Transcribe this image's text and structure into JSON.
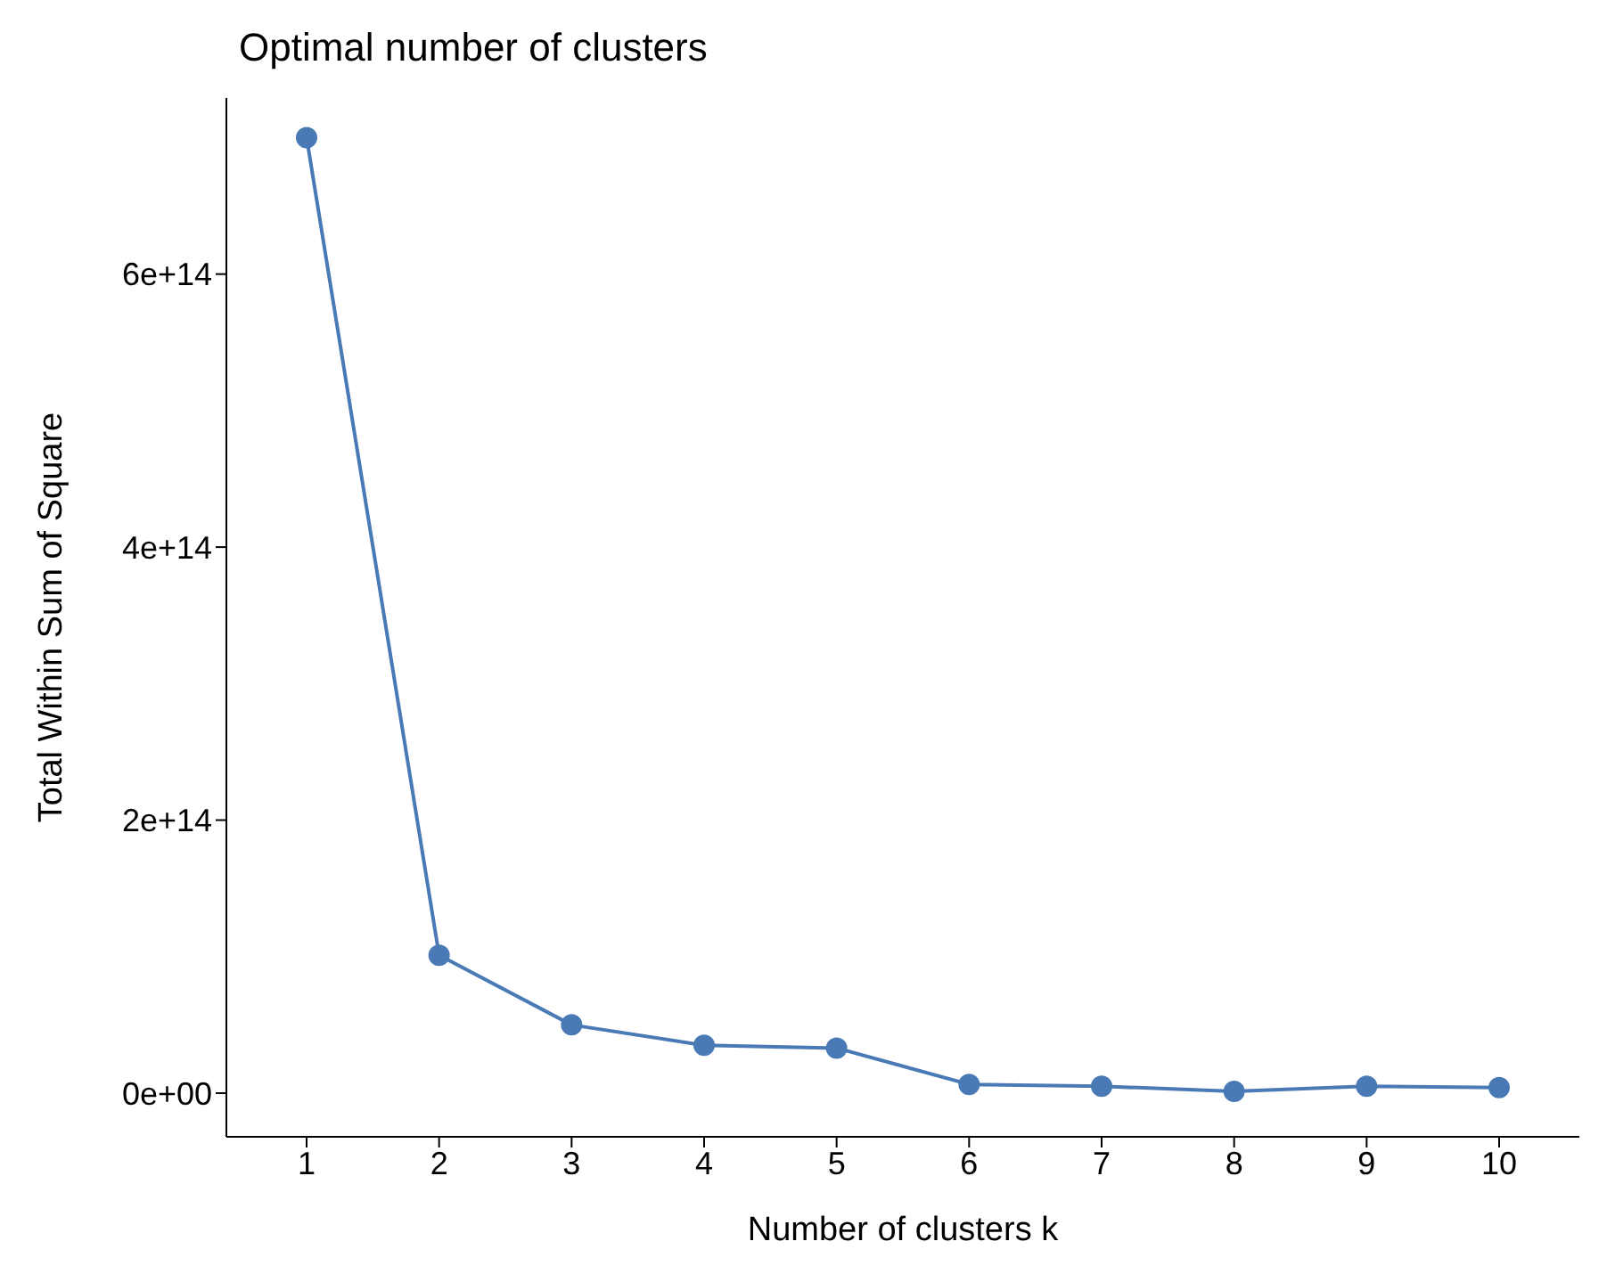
{
  "chart_data": {
    "type": "line",
    "title": "Optimal number of clusters",
    "xlabel": "Number of clusters k",
    "ylabel": "Total Within Sum of Square",
    "categories": [
      "1",
      "2",
      "3",
      "4",
      "5",
      "6",
      "7",
      "8",
      "9",
      "10"
    ],
    "series": [
      {
        "color": "#4a7ab5",
        "values": [
          700000000000000,
          101000000000000,
          50000000000000,
          35000000000000,
          33000000000000,
          6400000000000,
          5000000000000,
          1300000000000,
          5000000000000,
          4000000000000
        ]
      }
    ],
    "ylim": [
      -32000000000000,
      729000000000000
    ],
    "yticks": [
      {
        "value": 0,
        "label": "0e+00"
      },
      {
        "value": 200000000000000,
        "label": "2e+14"
      },
      {
        "value": 400000000000000,
        "label": "4e+14"
      },
      {
        "value": 600000000000000,
        "label": "6e+14"
      }
    ],
    "grid": false,
    "legend": false,
    "marker": "circle",
    "line_style": "solid"
  }
}
